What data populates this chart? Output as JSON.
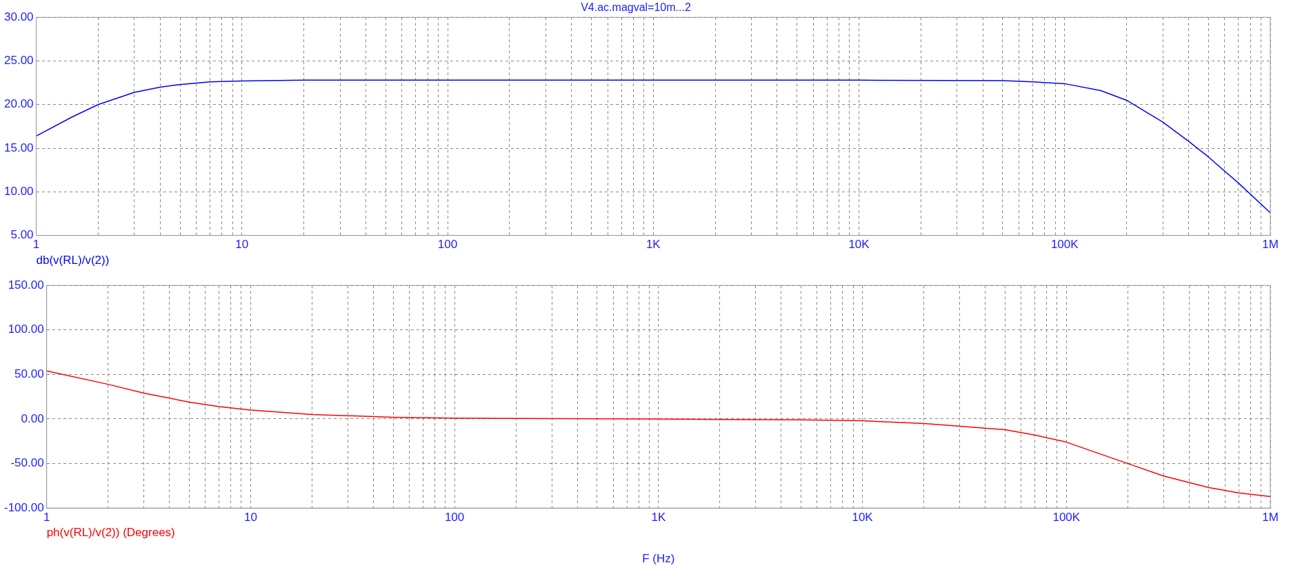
{
  "chart_data": [
    {
      "type": "line",
      "title": "V4.ac.magval=10m...2",
      "log": "x",
      "grid": true,
      "marker": "none",
      "line_style": "solid",
      "xlim": [
        1,
        1000000
      ],
      "xticks": [
        {
          "value": 1,
          "label": "1"
        },
        {
          "value": 2,
          "label": null
        },
        {
          "value": 3,
          "label": null
        },
        {
          "value": 4,
          "label": null
        },
        {
          "value": 5,
          "label": null
        },
        {
          "value": 6,
          "label": null
        },
        {
          "value": 7,
          "label": null
        },
        {
          "value": 8,
          "label": null
        },
        {
          "value": 9,
          "label": null
        },
        {
          "value": 10,
          "label": "10"
        },
        {
          "value": 20,
          "label": null
        },
        {
          "value": 30,
          "label": null
        },
        {
          "value": 40,
          "label": null
        },
        {
          "value": 50,
          "label": null
        },
        {
          "value": 60,
          "label": null
        },
        {
          "value": 70,
          "label": null
        },
        {
          "value": 80,
          "label": null
        },
        {
          "value": 90,
          "label": null
        },
        {
          "value": 100,
          "label": "100"
        },
        {
          "value": 200,
          "label": null
        },
        {
          "value": 300,
          "label": null
        },
        {
          "value": 400,
          "label": null
        },
        {
          "value": 500,
          "label": null
        },
        {
          "value": 600,
          "label": null
        },
        {
          "value": 700,
          "label": null
        },
        {
          "value": 800,
          "label": null
        },
        {
          "value": 900,
          "label": null
        },
        {
          "value": 1000,
          "label": "1K"
        },
        {
          "value": 2000,
          "label": null
        },
        {
          "value": 3000,
          "label": null
        },
        {
          "value": 4000,
          "label": null
        },
        {
          "value": 5000,
          "label": null
        },
        {
          "value": 6000,
          "label": null
        },
        {
          "value": 7000,
          "label": null
        },
        {
          "value": 8000,
          "label": null
        },
        {
          "value": 9000,
          "label": null
        },
        {
          "value": 10000,
          "label": "10K"
        },
        {
          "value": 20000,
          "label": null
        },
        {
          "value": 30000,
          "label": null
        },
        {
          "value": 40000,
          "label": null
        },
        {
          "value": 50000,
          "label": null
        },
        {
          "value": 60000,
          "label": null
        },
        {
          "value": 70000,
          "label": null
        },
        {
          "value": 80000,
          "label": null
        },
        {
          "value": 90000,
          "label": null
        },
        {
          "value": 100000,
          "label": "100K"
        },
        {
          "value": 200000,
          "label": null
        },
        {
          "value": 300000,
          "label": null
        },
        {
          "value": 400000,
          "label": null
        },
        {
          "value": 500000,
          "label": null
        },
        {
          "value": 600000,
          "label": null
        },
        {
          "value": 700000,
          "label": null
        },
        {
          "value": 800000,
          "label": null
        },
        {
          "value": 900000,
          "label": null
        },
        {
          "value": 1000000,
          "label": "1M"
        }
      ],
      "ylim": [
        5,
        30
      ],
      "yticks": [
        {
          "value": 5,
          "label": "5.00"
        },
        {
          "value": 10,
          "label": "10.00"
        },
        {
          "value": 15,
          "label": "15.00"
        },
        {
          "value": 20,
          "label": "20.00"
        },
        {
          "value": 25,
          "label": "25.00"
        },
        {
          "value": 30,
          "label": "30.00"
        }
      ],
      "x": [
        1,
        1.5,
        2,
        3,
        4,
        5,
        7,
        10,
        20,
        100,
        1000,
        10000,
        50000,
        70000,
        100000,
        150000,
        200000,
        300000,
        400000,
        500000,
        700000,
        1000000
      ],
      "series": [
        {
          "name": "db(v(RL)/v(2))",
          "color": "#0000ff",
          "values": [
            16.4,
            18.6,
            20.0,
            21.4,
            22.0,
            22.3,
            22.6,
            22.7,
            22.8,
            22.8,
            22.8,
            22.8,
            22.75,
            22.6,
            22.4,
            21.6,
            20.5,
            18.0,
            15.8,
            14.0,
            11.0,
            7.6
          ]
        }
      ]
    },
    {
      "type": "line",
      "xlabel": "F (Hz)",
      "log": "x",
      "grid": true,
      "marker": "none",
      "line_style": "solid",
      "xlim": [
        1,
        1000000
      ],
      "xticks": [
        {
          "value": 1,
          "label": "1"
        },
        {
          "value": 2,
          "label": null
        },
        {
          "value": 3,
          "label": null
        },
        {
          "value": 4,
          "label": null
        },
        {
          "value": 5,
          "label": null
        },
        {
          "value": 6,
          "label": null
        },
        {
          "value": 7,
          "label": null
        },
        {
          "value": 8,
          "label": null
        },
        {
          "value": 9,
          "label": null
        },
        {
          "value": 10,
          "label": "10"
        },
        {
          "value": 20,
          "label": null
        },
        {
          "value": 30,
          "label": null
        },
        {
          "value": 40,
          "label": null
        },
        {
          "value": 50,
          "label": null
        },
        {
          "value": 60,
          "label": null
        },
        {
          "value": 70,
          "label": null
        },
        {
          "value": 80,
          "label": null
        },
        {
          "value": 90,
          "label": null
        },
        {
          "value": 100,
          "label": "100"
        },
        {
          "value": 200,
          "label": null
        },
        {
          "value": 300,
          "label": null
        },
        {
          "value": 400,
          "label": null
        },
        {
          "value": 500,
          "label": null
        },
        {
          "value": 600,
          "label": null
        },
        {
          "value": 700,
          "label": null
        },
        {
          "value": 800,
          "label": null
        },
        {
          "value": 900,
          "label": null
        },
        {
          "value": 1000,
          "label": "1K"
        },
        {
          "value": 2000,
          "label": null
        },
        {
          "value": 3000,
          "label": null
        },
        {
          "value": 4000,
          "label": null
        },
        {
          "value": 5000,
          "label": null
        },
        {
          "value": 6000,
          "label": null
        },
        {
          "value": 7000,
          "label": null
        },
        {
          "value": 8000,
          "label": null
        },
        {
          "value": 9000,
          "label": null
        },
        {
          "value": 10000,
          "label": "10K"
        },
        {
          "value": 20000,
          "label": null
        },
        {
          "value": 30000,
          "label": null
        },
        {
          "value": 40000,
          "label": null
        },
        {
          "value": 50000,
          "label": null
        },
        {
          "value": 60000,
          "label": null
        },
        {
          "value": 70000,
          "label": null
        },
        {
          "value": 80000,
          "label": null
        },
        {
          "value": 90000,
          "label": null
        },
        {
          "value": 100000,
          "label": "100K"
        },
        {
          "value": 200000,
          "label": null
        },
        {
          "value": 300000,
          "label": null
        },
        {
          "value": 400000,
          "label": null
        },
        {
          "value": 500000,
          "label": null
        },
        {
          "value": 600000,
          "label": null
        },
        {
          "value": 700000,
          "label": null
        },
        {
          "value": 800000,
          "label": null
        },
        {
          "value": 900000,
          "label": null
        },
        {
          "value": 1000000,
          "label": "1M"
        }
      ],
      "ylim": [
        -100,
        150
      ],
      "yticks": [
        {
          "value": -100,
          "label": "-100.00"
        },
        {
          "value": -50,
          "label": "-50.00"
        },
        {
          "value": 0,
          "label": "0.00"
        },
        {
          "value": 50,
          "label": "50.00"
        },
        {
          "value": 100,
          "label": "100.00"
        },
        {
          "value": 150,
          "label": "150.00"
        }
      ],
      "x": [
        1,
        2,
        3,
        5,
        7,
        10,
        20,
        50,
        100,
        1000,
        5000,
        10000,
        20000,
        50000,
        70000,
        100000,
        200000,
        300000,
        500000,
        700000,
        1000000
      ],
      "series": [
        {
          "name": "ph(v(RL)/v(2)) (Degrees)",
          "color": "#ff0000",
          "values": [
            54,
            39,
            29,
            19,
            14,
            10,
            5,
            2,
            1,
            0,
            -1,
            -2,
            -5,
            -12,
            -18,
            -26,
            -50,
            -64,
            -77,
            -83,
            -87
          ]
        }
      ]
    }
  ]
}
